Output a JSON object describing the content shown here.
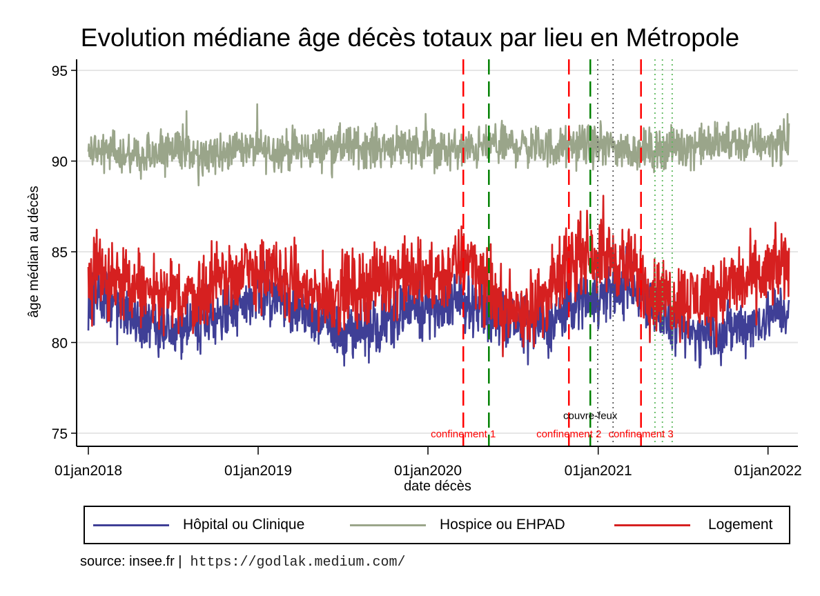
{
  "chart_data": {
    "type": "line",
    "title": "Evolution médiane âge décès totaux par lieu en Métropole",
    "xlabel": "date décès",
    "ylabel": "âge médian au décès",
    "xlim": [
      "2018-01-01",
      "2022-02-20"
    ],
    "ylim": [
      74.3,
      96
    ],
    "y_ticks": [
      75,
      80,
      85,
      90,
      95
    ],
    "x_ticks": [
      {
        "date": "2018-01-01",
        "label": "01jan2018"
      },
      {
        "date": "2019-01-01",
        "label": "01jan2019"
      },
      {
        "date": "2020-01-01",
        "label": "01jan2020"
      },
      {
        "date": "2021-01-01",
        "label": "01jan2021"
      },
      {
        "date": "2022-01-01",
        "label": "01jan2022"
      }
    ],
    "grid": true,
    "legend_position": "bottom",
    "series": [
      {
        "name": "Hôpital ou Clinique",
        "color": "#3f3f96",
        "frequency": "daily",
        "monthly_median": [
          82.6,
          82.3,
          82.0,
          81.6,
          81.2,
          80.9,
          80.8,
          80.9,
          81.0,
          81.4,
          81.8,
          82.3,
          82.6,
          82.5,
          82.2,
          81.8,
          81.3,
          80.9,
          80.6,
          80.7,
          80.9,
          81.2,
          81.6,
          81.9,
          82.0,
          82.1,
          82.1,
          82.3,
          81.9,
          81.4,
          81.1,
          80.9,
          80.9,
          81.3,
          82.0,
          82.5,
          82.6,
          82.9,
          83.0,
          82.7,
          82.0,
          81.0,
          80.6,
          80.5,
          80.6,
          80.7,
          80.9,
          81.1,
          81.5,
          81.8,
          82.0,
          82.2
        ],
        "noise_amplitude": 0.75
      },
      {
        "name": "Hospice ou EHPAD",
        "color": "#9aa58a",
        "frequency": "daily",
        "monthly_median": [
          90.7,
          90.6,
          90.5,
          90.4,
          90.4,
          90.5,
          90.6,
          90.6,
          90.5,
          90.6,
          90.7,
          90.7,
          90.6,
          90.6,
          90.6,
          90.6,
          90.7,
          90.8,
          90.8,
          90.8,
          90.8,
          90.8,
          90.9,
          90.9,
          90.7,
          90.6,
          90.6,
          90.6,
          90.8,
          90.9,
          90.9,
          90.8,
          90.8,
          90.7,
          90.8,
          90.9,
          90.8,
          90.8,
          90.6,
          90.6,
          90.6,
          90.8,
          90.8,
          90.9,
          90.9,
          91.0,
          91.0,
          91.0,
          91.0,
          91.0,
          91.1,
          91.2
        ],
        "noise_amplitude": 0.55
      },
      {
        "name": "Logement",
        "color": "#d62020",
        "frequency": "daily",
        "monthly_median": [
          83.8,
          83.7,
          83.4,
          83.1,
          82.8,
          82.6,
          82.4,
          82.5,
          82.8,
          83.3,
          83.7,
          83.8,
          83.9,
          83.7,
          83.4,
          83.0,
          82.7,
          82.6,
          82.7,
          83.0,
          83.3,
          83.6,
          83.8,
          83.6,
          83.4,
          83.6,
          84.2,
          84.9,
          83.0,
          82.0,
          81.7,
          81.9,
          82.3,
          83.2,
          84.4,
          85.0,
          84.8,
          84.6,
          84.3,
          83.5,
          82.7,
          82.5,
          82.4,
          82.4,
          82.7,
          83.0,
          83.3,
          83.5,
          83.8,
          84.2,
          84.8,
          85.3
        ],
        "noise_amplitude": 1.0
      }
    ],
    "vertical_lines": [
      {
        "date": "2020-03-17",
        "color": "#ff0000",
        "style": "dashed"
      },
      {
        "date": "2020-05-11",
        "color": "#008000",
        "style": "dashed"
      },
      {
        "date": "2020-10-30",
        "color": "#ff0000",
        "style": "dashed"
      },
      {
        "date": "2020-12-15",
        "color": "#008000",
        "style": "dashed"
      },
      {
        "date": "2020-12-31",
        "color": "#555555",
        "style": "dotted"
      },
      {
        "date": "2021-02-02",
        "color": "#555555",
        "style": "dotted"
      },
      {
        "date": "2021-04-03",
        "color": "#ff0000",
        "style": "dashed"
      },
      {
        "date": "2021-05-03",
        "color": "#5cb85c",
        "style": "dotted"
      },
      {
        "date": "2021-05-19",
        "color": "#5cb85c",
        "style": "dotted"
      },
      {
        "date": "2021-06-09",
        "color": "#5cb85c",
        "style": "dotted"
      }
    ],
    "annotations": [
      {
        "text": "confinement 1",
        "date": "2020-03-17",
        "y": 75,
        "color": "#ff0000"
      },
      {
        "text": "confinement 2",
        "date": "2020-10-30",
        "y": 75,
        "color": "#ff0000"
      },
      {
        "text": "confinement 3",
        "date": "2021-04-03",
        "y": 75,
        "color": "#ff0000"
      },
      {
        "text": "couvre-feux",
        "date": "2020-12-15",
        "y": 76,
        "color": "#000000"
      }
    ]
  },
  "legend": {
    "items": [
      {
        "label": "Hôpital ou Clinique",
        "color": "#3f3f96"
      },
      {
        "label": "Hospice ou EHPAD",
        "color": "#9aa58a"
      },
      {
        "label": "Logement",
        "color": "#d62020"
      }
    ]
  },
  "footer": {
    "source": "source: insee.fr |",
    "url": "https://godlak.medium.com/"
  }
}
